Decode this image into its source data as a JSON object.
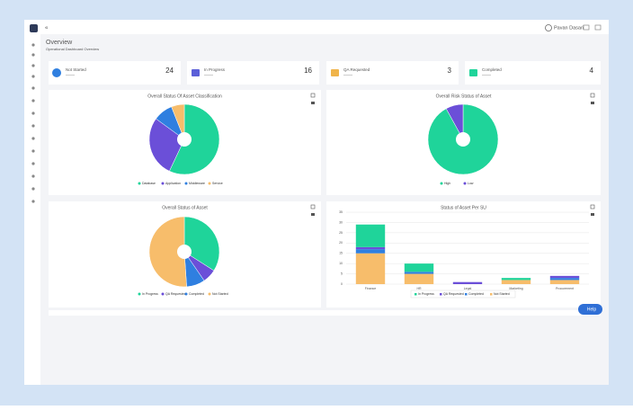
{
  "header": {
    "user": "Pavan Dasari"
  },
  "page": {
    "title": "Overview",
    "subtitle": "Operational Dashboard Overview"
  },
  "cards": [
    {
      "label": "Not Started",
      "value": 24
    },
    {
      "label": "In Progress",
      "value": 16
    },
    {
      "label": "QA Requested",
      "value": 3
    },
    {
      "label": "Completed",
      "value": 4
    }
  ],
  "charts": [
    {
      "type": "pie",
      "title": "Overall Status Of Asset Classification",
      "labels": [
        "Database",
        "Application",
        "Middleware",
        "Service"
      ],
      "values": [
        57,
        28,
        9,
        6
      ],
      "colors": [
        "#1fd49a",
        "#6b4fd8",
        "#2f7fe0",
        "#f7bd6b"
      ]
    },
    {
      "type": "pie",
      "title": "Overall Risk Status of Asset",
      "labels": [
        "High",
        "Low"
      ],
      "values": [
        92,
        8
      ],
      "colors": [
        "#1fd49a",
        "#6b4fd8"
      ]
    },
    {
      "type": "pie",
      "title": "Overall Status of Asset",
      "labels": [
        "In Progress",
        "QA Requested",
        "Completed",
        "Not Started"
      ],
      "values": [
        16,
        3,
        4,
        24
      ],
      "colors": [
        "#1fd49a",
        "#6b4fd8",
        "#2f7fe0",
        "#f7bd6b"
      ]
    },
    {
      "type": "bar",
      "title": "Status of Asset Per SU",
      "categories": [
        "Finance",
        "HR",
        "Legal",
        "Marketing",
        "Procurement"
      ],
      "series": [
        {
          "name": "In Progress",
          "color": "#1fd49a",
          "values": [
            11,
            4,
            0,
            1,
            0
          ]
        },
        {
          "name": "QA Requested",
          "color": "#6b4fd8",
          "values": [
            1,
            0,
            1,
            0,
            1
          ]
        },
        {
          "name": "Completed",
          "color": "#2f7fe0",
          "values": [
            2,
            1,
            0,
            0,
            1
          ]
        },
        {
          "name": "Not Started",
          "color": "#f7bd6b",
          "values": [
            15,
            5,
            0,
            2,
            2
          ]
        }
      ],
      "ylim": [
        0,
        35
      ],
      "yticks": [
        0,
        5,
        10,
        15,
        20,
        25,
        30,
        35
      ],
      "grid": true
    }
  ],
  "help": "Help"
}
